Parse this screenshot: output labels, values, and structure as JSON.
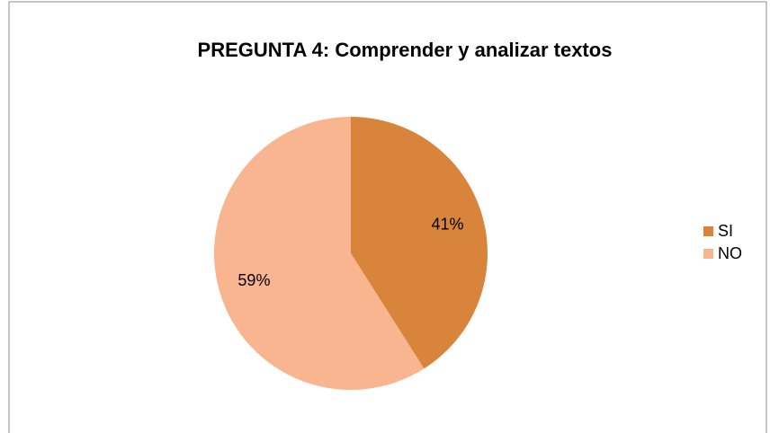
{
  "chart_data": {
    "type": "pie",
    "title": "PREGUNTA 4: Comprender y analizar textos",
    "categories": [
      "SI",
      "NO"
    ],
    "values": [
      41,
      59
    ],
    "value_labels": [
      "41%",
      "59%"
    ],
    "colors": [
      "#d9843b",
      "#f8b58f"
    ],
    "legend": "right"
  }
}
